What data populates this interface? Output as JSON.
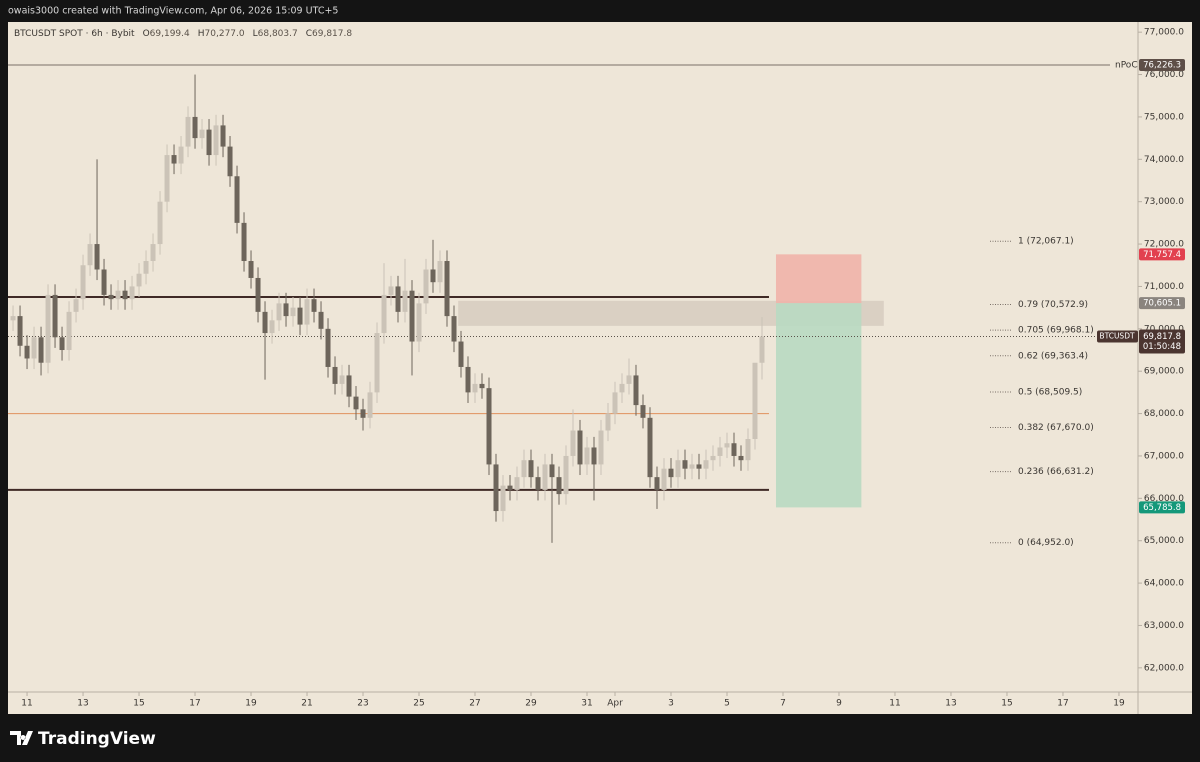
{
  "header": "owais3000 created with TradingView.com, Apr 06, 2026 15:09 UTC+5",
  "brand": "TradingView",
  "chart_data": {
    "type": "candlestick",
    "symbol_line": "BTCUSDT SPOT · 6h · Bybit",
    "ohlc_legend": [
      {
        "key": "O",
        "value": "69,199.4"
      },
      {
        "key": "H",
        "value": "70,277.0"
      },
      {
        "key": "L",
        "value": "68,803.7"
      },
      {
        "key": "C",
        "value": "69,817.8"
      }
    ],
    "up_color": "#cbc3b7",
    "down_color": "#6d655b",
    "xlim": [
      10.32,
      50.68
    ],
    "xticks": [
      11,
      13,
      15,
      17,
      19,
      21,
      23,
      25,
      27,
      29,
      31,
      {
        "value": 32,
        "label": "Apr"
      },
      {
        "value": 34,
        "label": "3"
      },
      {
        "value": 36,
        "label": "5"
      },
      {
        "value": 38,
        "label": "7"
      },
      {
        "value": 40,
        "label": "9"
      },
      {
        "value": 42,
        "label": "11"
      },
      {
        "value": 44,
        "label": "13"
      },
      {
        "value": 46,
        "label": "15"
      },
      {
        "value": 48,
        "label": "17"
      },
      {
        "value": 50,
        "label": "19"
      }
    ],
    "ylim": [
      61430,
      77240
    ],
    "yticks": [
      {
        "value": 62000,
        "label": "62,000.0"
      },
      {
        "value": 63000,
        "label": "63,000.0"
      },
      {
        "value": 64000,
        "label": "64,000.0"
      },
      {
        "value": 65000,
        "label": "65,000.0"
      },
      {
        "value": 66000,
        "label": "66,000.0"
      },
      {
        "value": 67000,
        "label": "67,000.0"
      },
      {
        "value": 68000,
        "label": "68,000.0"
      },
      {
        "value": 69000,
        "label": "69,000.0"
      },
      {
        "value": 70000,
        "label": "70,000.0"
      },
      {
        "value": 71000,
        "label": "71,000.0"
      },
      {
        "value": 72000,
        "label": "72,000.0"
      },
      {
        "value": 73000,
        "label": "73,000.0"
      },
      {
        "value": 74000,
        "label": "74,000.0"
      },
      {
        "value": 75000,
        "label": "75,000.0"
      },
      {
        "value": 76000,
        "label": "76,000.0"
      },
      {
        "value": 77000,
        "label": "77,000.0"
      }
    ],
    "x": [
      10.5,
      10.75,
      11,
      11.25,
      11.5,
      11.75,
      12,
      12.25,
      12.5,
      12.75,
      13,
      13.25,
      13.5,
      13.75,
      14,
      14.25,
      14.5,
      14.75,
      15,
      15.25,
      15.5,
      15.75,
      16,
      16.25,
      16.5,
      16.75,
      17,
      17.25,
      17.5,
      17.75,
      18,
      18.25,
      18.5,
      18.75,
      19,
      19.25,
      19.5,
      19.75,
      20,
      20.25,
      20.5,
      20.75,
      21,
      21.25,
      21.5,
      21.75,
      22,
      22.25,
      22.5,
      22.75,
      23,
      23.25,
      23.5,
      23.75,
      24,
      24.25,
      24.5,
      24.75,
      25,
      25.25,
      25.5,
      25.75,
      26,
      26.25,
      26.5,
      26.75,
      27,
      27.25,
      27.5,
      27.75,
      28,
      28.25,
      28.5,
      28.75,
      29,
      29.25,
      29.5,
      29.75,
      30,
      30.25,
      30.5,
      30.75,
      31,
      31.25,
      31.5,
      31.75,
      32,
      32.25,
      32.5,
      32.75,
      33,
      33.25,
      33.5,
      33.75,
      34,
      34.25,
      34.5,
      34.75,
      35,
      35.25,
      35.5,
      35.75,
      36,
      36.25,
      36.5,
      36.75,
      37,
      37.25
    ],
    "candles": [
      [
        70200,
        70550,
        69950,
        70300
      ],
      [
        70300,
        70550,
        69350,
        69600
      ],
      [
        69600,
        69850,
        69050,
        69300
      ],
      [
        69300,
        70050,
        69050,
        69800
      ],
      [
        69800,
        70050,
        68900,
        69200
      ],
      [
        69200,
        71050,
        68950,
        70800
      ],
      [
        70800,
        71050,
        69550,
        69800
      ],
      [
        69800,
        70050,
        69250,
        69500
      ],
      [
        69500,
        70650,
        69250,
        70400
      ],
      [
        70400,
        70950,
        70150,
        70700
      ],
      [
        70700,
        71750,
        70450,
        71500
      ],
      [
        71500,
        72250,
        71250,
        72000
      ],
      [
        72000,
        74000,
        71150,
        71400
      ],
      [
        71400,
        71650,
        70550,
        70800
      ],
      [
        70800,
        71050,
        70450,
        70700
      ],
      [
        70700,
        71150,
        70450,
        70900
      ],
      [
        70900,
        71150,
        70450,
        70700
      ],
      [
        70700,
        71250,
        70450,
        71000
      ],
      [
        71000,
        71550,
        70750,
        71300
      ],
      [
        71300,
        71850,
        71050,
        71600
      ],
      [
        71600,
        72250,
        71350,
        72000
      ],
      [
        72000,
        73250,
        71750,
        73000
      ],
      [
        73000,
        74350,
        72750,
        74100
      ],
      [
        74100,
        74350,
        73650,
        73900
      ],
      [
        73900,
        74550,
        73650,
        74300
      ],
      [
        74300,
        75250,
        74050,
        75000
      ],
      [
        75000,
        76000,
        74250,
        74500
      ],
      [
        74500,
        74950,
        74250,
        74700
      ],
      [
        74700,
        74950,
        73850,
        74100
      ],
      [
        74100,
        75050,
        73850,
        74800
      ],
      [
        74800,
        75050,
        74050,
        74300
      ],
      [
        74300,
        74550,
        73350,
        73600
      ],
      [
        73600,
        73850,
        72250,
        72500
      ],
      [
        72500,
        72750,
        71350,
        71600
      ],
      [
        71600,
        71850,
        70950,
        71200
      ],
      [
        71200,
        71450,
        70150,
        70400
      ],
      [
        70400,
        70650,
        68800,
        69900
      ],
      [
        69900,
        70450,
        69650,
        70200
      ],
      [
        70200,
        70850,
        69950,
        70600
      ],
      [
        70600,
        70850,
        70050,
        70300
      ],
      [
        70300,
        70750,
        70050,
        70500
      ],
      [
        70500,
        70750,
        69850,
        70100
      ],
      [
        70100,
        70950,
        69850,
        70700
      ],
      [
        70700,
        70950,
        70150,
        70400
      ],
      [
        70400,
        70650,
        69750,
        70000
      ],
      [
        70000,
        70250,
        68850,
        69100
      ],
      [
        69100,
        69350,
        68450,
        68700
      ],
      [
        68700,
        69150,
        68450,
        68900
      ],
      [
        68900,
        69150,
        68150,
        68400
      ],
      [
        68400,
        68650,
        67850,
        68100
      ],
      [
        68100,
        68350,
        67600,
        67900
      ],
      [
        67900,
        68750,
        67650,
        68500
      ],
      [
        68500,
        70150,
        68250,
        69900
      ],
      [
        69900,
        71550,
        69650,
        70800
      ],
      [
        70800,
        71250,
        70550,
        71000
      ],
      [
        71000,
        71250,
        70150,
        70400
      ],
      [
        70400,
        71650,
        70150,
        70900
      ],
      [
        70900,
        71150,
        68900,
        69700
      ],
      [
        69700,
        70850,
        69450,
        70600
      ],
      [
        70600,
        71650,
        70350,
        71400
      ],
      [
        71400,
        72100,
        70850,
        71100
      ],
      [
        71100,
        71850,
        70850,
        71600
      ],
      [
        71600,
        71850,
        70050,
        70300
      ],
      [
        70300,
        70550,
        69450,
        69700
      ],
      [
        69700,
        69950,
        68850,
        69100
      ],
      [
        69100,
        69350,
        68250,
        68500
      ],
      [
        68500,
        68950,
        68250,
        68700
      ],
      [
        68700,
        68950,
        68350,
        68600
      ],
      [
        68600,
        68850,
        66550,
        66800
      ],
      [
        66800,
        67050,
        65450,
        65700
      ],
      [
        65700,
        66550,
        65450,
        66300
      ],
      [
        66300,
        66550,
        65950,
        66200
      ],
      [
        66200,
        66750,
        65950,
        66500
      ],
      [
        66500,
        67150,
        66250,
        66900
      ],
      [
        66900,
        67150,
        66250,
        66500
      ],
      [
        66500,
        66750,
        65950,
        66200
      ],
      [
        66200,
        67050,
        65950,
        66800
      ],
      [
        66800,
        67050,
        64950,
        66500
      ],
      [
        66500,
        66750,
        65850,
        66100
      ],
      [
        66100,
        67250,
        65850,
        67000
      ],
      [
        67000,
        68100,
        66750,
        67600
      ],
      [
        67600,
        67850,
        66550,
        66800
      ],
      [
        66800,
        67450,
        66550,
        67200
      ],
      [
        67200,
        67450,
        65950,
        66800
      ],
      [
        66800,
        67850,
        66550,
        67600
      ],
      [
        67600,
        68250,
        67350,
        68000
      ],
      [
        68000,
        68750,
        67750,
        68500
      ],
      [
        68500,
        68950,
        68250,
        68700
      ],
      [
        68700,
        69300,
        68450,
        68900
      ],
      [
        68900,
        69150,
        67950,
        68200
      ],
      [
        68200,
        68450,
        67650,
        67900
      ],
      [
        67900,
        68150,
        66250,
        66500
      ],
      [
        66500,
        66750,
        65750,
        66200
      ],
      [
        66200,
        66950,
        65950,
        66700
      ],
      [
        66700,
        66950,
        66250,
        66500
      ],
      [
        66500,
        67150,
        66250,
        66900
      ],
      [
        66900,
        67150,
        66450,
        66700
      ],
      [
        66700,
        67050,
        66450,
        66800
      ],
      [
        66800,
        67050,
        66450,
        66700
      ],
      [
        66700,
        67150,
        66450,
        66900
      ],
      [
        66900,
        67250,
        66650,
        67000
      ],
      [
        67000,
        67450,
        66750,
        67200
      ],
      [
        67200,
        67550,
        66950,
        67300
      ],
      [
        67300,
        67550,
        66750,
        67000
      ],
      [
        67000,
        67250,
        66650,
        66900
      ],
      [
        66900,
        67650,
        66650,
        67400
      ],
      [
        67400,
        69150,
        67150,
        69199.4
      ],
      [
        69199.4,
        70277.0,
        68803.7,
        69817.8
      ]
    ],
    "levels": [
      {
        "price": 70750,
        "x_end": 37.5,
        "color": "#3f2a26",
        "width": 2
      },
      {
        "price": 66200,
        "x_end": 37.5,
        "color": "#3f2a26",
        "width": 2
      },
      {
        "price": 68000,
        "x_end": 37.5,
        "color": "#e0915e",
        "width": 1
      }
    ],
    "npoc": {
      "label": "nPoC",
      "price": 76226.3,
      "price_label": "76,226.3",
      "color": "#7a7068"
    },
    "zone": {
      "top": 70660,
      "bottom": 70070,
      "x_start": 26.4,
      "x_end": 41.6,
      "color": "#d6cbbf"
    },
    "position": {
      "stop": 71757.4,
      "entry": 70605.1,
      "target": 65785.8,
      "x_start": 37.75,
      "x_end": 40.8,
      "stop_label": "71,757.4",
      "entry_label": "70,605.1",
      "target_label": "65,785.8",
      "stop_color": "#efb3aa",
      "target_color": "#b8d9c2",
      "stop_badge": "#e2404f",
      "entry_badge": "#8a847e",
      "target_badge": "#14987a"
    },
    "current": {
      "symbol": "BTCUSDT",
      "price_label": "69,817.8",
      "countdown": "01:50:48",
      "color": "#4b3530"
    },
    "fib": [
      {
        "price": 72067.1,
        "label": "1 (72,067.1)"
      },
      {
        "price": 70572.9,
        "label": "0.79 (70,572.9)"
      },
      {
        "price": 69968.1,
        "label": "0.705 (69,968.1)"
      },
      {
        "price": 69363.4,
        "label": "0.62 (69,363.4)"
      },
      {
        "price": 68509.5,
        "label": "0.5 (68,509.5)"
      },
      {
        "price": 67670.0,
        "label": "0.382 (67,670.0)"
      },
      {
        "price": 66631.2,
        "label": "0.236 (66,631.2)"
      },
      {
        "price": 64952.0,
        "label": "0 (64,952.0)"
      }
    ]
  }
}
